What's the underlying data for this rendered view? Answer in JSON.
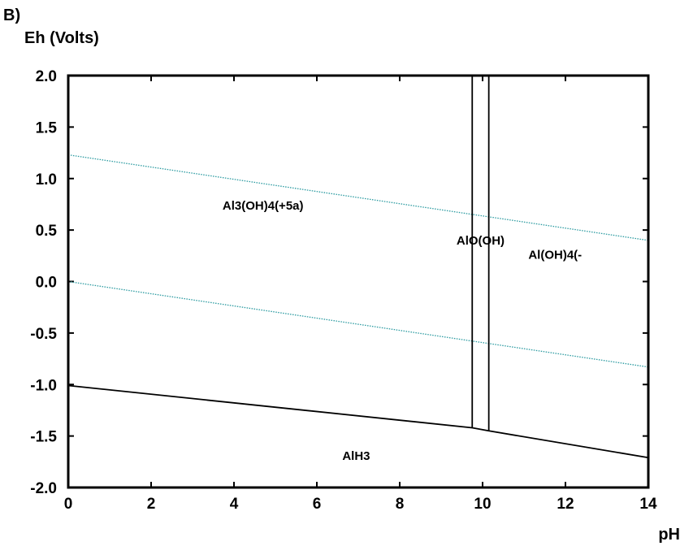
{
  "panel_label": "B)",
  "chart_data": {
    "type": "line",
    "title": "",
    "xlabel": "pH",
    "ylabel": "Eh (Volts)",
    "xlim": [
      0,
      14
    ],
    "ylim": [
      -2.0,
      2.0
    ],
    "x_ticks": [
      "0",
      "2",
      "4",
      "6",
      "8",
      "10",
      "12",
      "14"
    ],
    "y_ticks": [
      "2.0",
      "1.5",
      "1.0",
      "0.5",
      "0.0",
      "-0.5",
      "-1.0",
      "-1.5",
      "-2.0"
    ],
    "grid": false,
    "legend": "none",
    "series": [
      {
        "role": "water-upper",
        "style": "dotted",
        "color": "#2a9aa0",
        "x": [
          0,
          14
        ],
        "y": [
          1.23,
          0.4
        ]
      },
      {
        "role": "water-lower",
        "style": "dotted",
        "color": "#2a9aa0",
        "x": [
          0,
          14
        ],
        "y": [
          0.0,
          -0.83
        ]
      },
      {
        "role": "boundary",
        "style": "solid",
        "color": "#000000",
        "x": [
          0,
          9.75,
          10.15,
          14
        ],
        "y": [
          -1.01,
          -1.42,
          -1.45,
          -1.71
        ]
      },
      {
        "role": "boundary",
        "style": "solid",
        "color": "#000000",
        "x": [
          9.75,
          9.75
        ],
        "y": [
          2.0,
          -1.42
        ]
      },
      {
        "role": "boundary",
        "style": "solid",
        "color": "#000000",
        "x": [
          10.15,
          10.15
        ],
        "y": [
          2.0,
          -1.45
        ]
      }
    ],
    "annotations": [
      {
        "text": "Al3(OH)4(+5a)",
        "x": 4.7,
        "y": 0.7
      },
      {
        "text": "AlO(OH)",
        "x": 9.95,
        "y": 0.36
      },
      {
        "text": "Al(OH)4(-",
        "x": 11.75,
        "y": 0.22
      },
      {
        "text": "AlH3",
        "x": 6.95,
        "y": -1.73
      }
    ]
  }
}
